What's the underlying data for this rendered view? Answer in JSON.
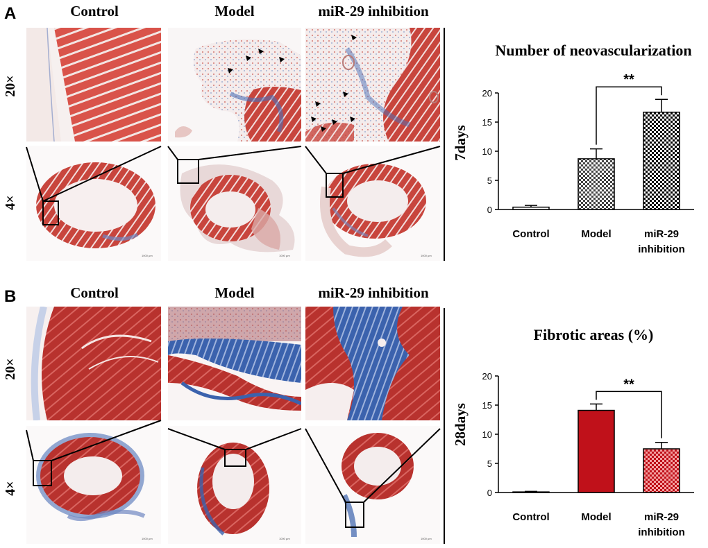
{
  "panels": [
    {
      "letter": "A",
      "columns": [
        "Control",
        "Model",
        "miR-29 inhibition"
      ],
      "rows": [
        "20×",
        "4×"
      ],
      "timepoint": "7days",
      "scalebars": [
        "1000 μm",
        "1000 μm",
        "1000 μm"
      ],
      "chart_title": "Number of neovascularization"
    },
    {
      "letter": "B",
      "columns": [
        "Control",
        "Model",
        "miR-29 inhibition"
      ],
      "rows": [
        "20×",
        "4×"
      ],
      "timepoint": "28days",
      "scalebars": [
        "1000 μm",
        "1000 μm",
        "1000 μm"
      ],
      "chart_title": "Fibrotic areas (%)"
    }
  ],
  "chart_data": [
    {
      "type": "bar",
      "title": "Number of neovascularization",
      "categories": [
        "Control",
        "Model",
        "miR-29 inhibition"
      ],
      "category_lines": [
        [
          "Control"
        ],
        [
          "Model"
        ],
        [
          "miR-29",
          "inhibition"
        ]
      ],
      "values": [
        0.4,
        8.7,
        16.7
      ],
      "errors": [
        0.3,
        1.7,
        2.2
      ],
      "ylim": [
        0,
        20
      ],
      "yticks": [
        0,
        5,
        10,
        15,
        20
      ],
      "fills": [
        "#ffffff",
        "checker-gray",
        "checker-black"
      ],
      "significance": {
        "from": 1,
        "to": 2,
        "label": "**"
      }
    },
    {
      "type": "bar",
      "title": "Fibrotic areas (%)",
      "categories": [
        "Control",
        "Model",
        "miR-29 inhibition"
      ],
      "category_lines": [
        [
          "Control"
        ],
        [
          "Model"
        ],
        [
          "miR-29",
          "inhibition"
        ]
      ],
      "values": [
        0.1,
        14.1,
        7.5
      ],
      "errors": [
        0.1,
        1.1,
        1.1
      ],
      "ylim": [
        0,
        20
      ],
      "yticks": [
        0,
        5,
        10,
        15,
        20
      ],
      "fills": [
        "#ffffff",
        "#c0111a",
        "checker-red"
      ],
      "significance": {
        "from": 1,
        "to": 2,
        "label": "**"
      }
    }
  ],
  "colors": {
    "muscle": "#d9534a",
    "fibrosis": "#3b62ad",
    "bar_red": "#c0111a"
  }
}
